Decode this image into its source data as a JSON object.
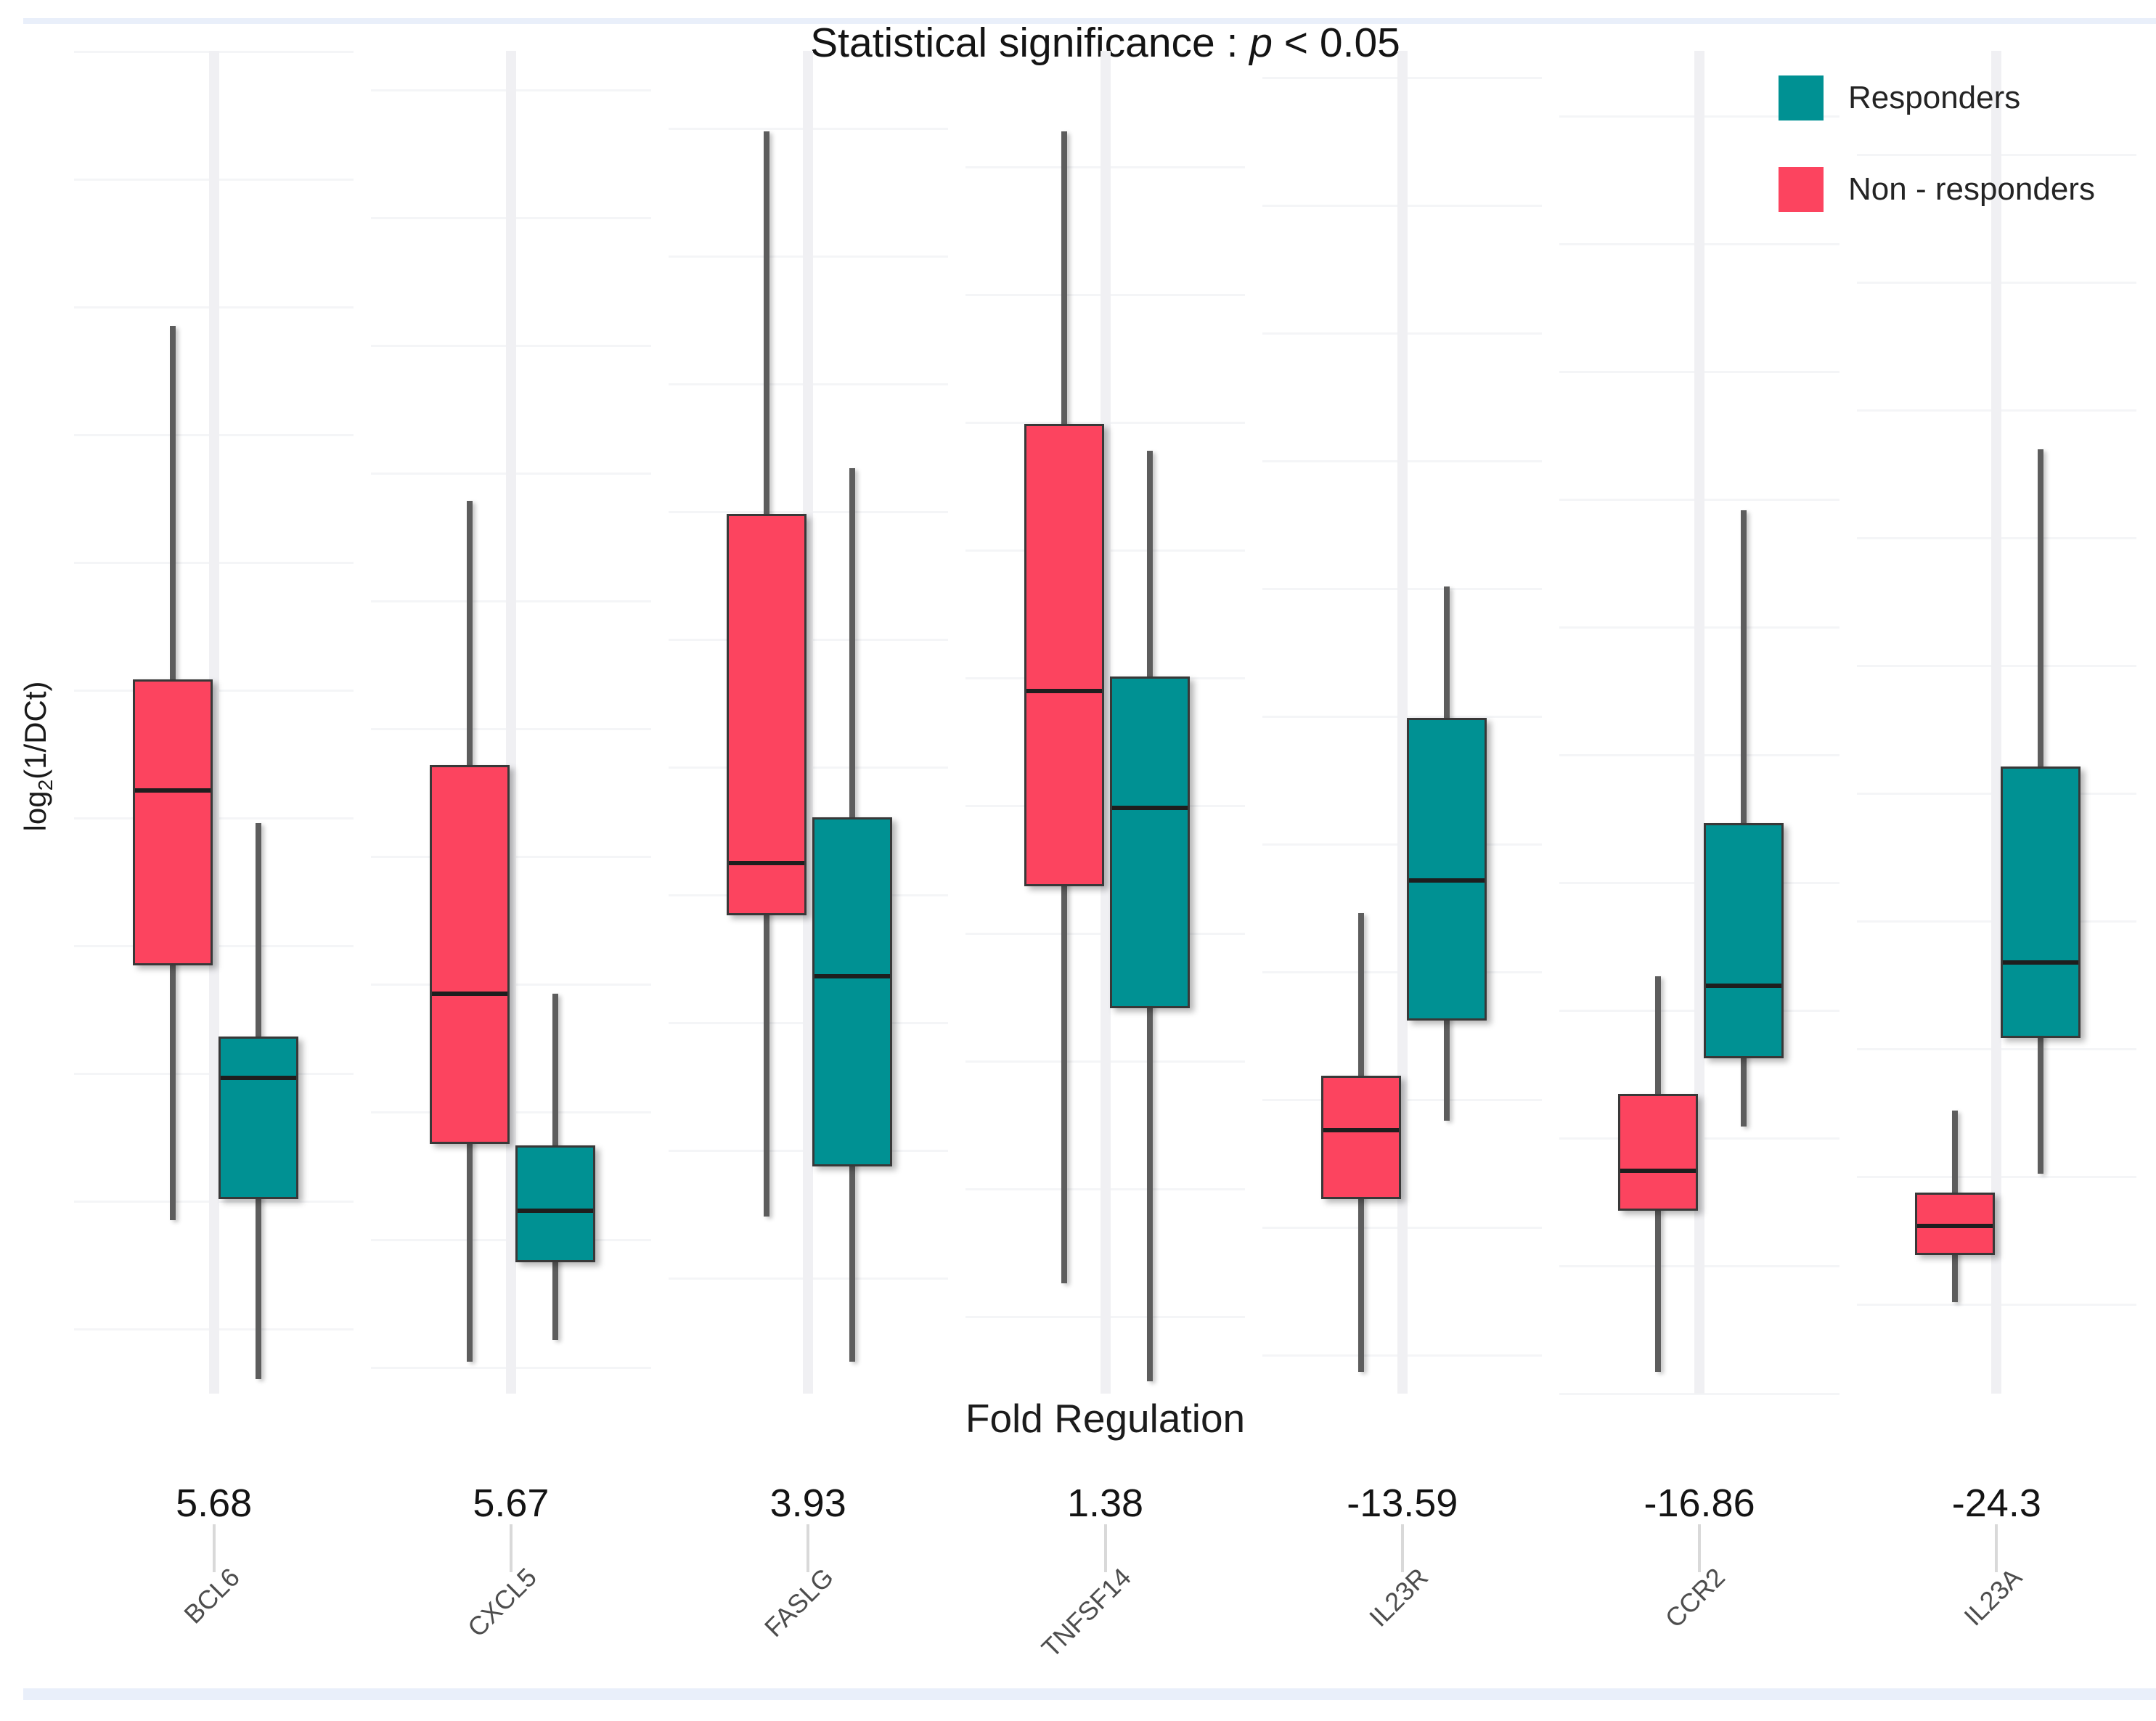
{
  "page": {
    "background": "#ffffff",
    "top_bar_color": "#E9EFFA",
    "bottom_bar_color": "#E9EFFA"
  },
  "chart_data": {
    "type": "boxplot",
    "title_parts": {
      "prefix": "Statistical significance : ",
      "p": "p",
      "suffix": " < 0.05"
    },
    "xlabel": "Fold Regulation",
    "ylabel_parts": {
      "pre": "log",
      "sub": "2",
      "post": "(1/DCt)"
    },
    "legend_position": "top-right",
    "legend": [
      {
        "label": "Responders",
        "color": "#009193"
      },
      {
        "label": "Non - responders",
        "color": "#FC445F"
      }
    ],
    "grid": "faint per-panel gridlines, free y-scales, no numeric y ticks",
    "y_units_note": "box statistics are estimated fractions of panel height (0 = panel bottom, 1 = panel top); no numeric y tick labels are visible",
    "series_order_in_panel": [
      "non_responders(left, pink)",
      "responders(right, teal)"
    ],
    "genes": [
      {
        "name": "BCL6",
        "fold_regulation": "5.68",
        "non_responders": {
          "whisker_low": 0.129,
          "q1": 0.319,
          "median": 0.449,
          "q3": 0.532,
          "whisker_high": 0.795
        },
        "responders": {
          "whisker_low": 0.011,
          "q1": 0.145,
          "median": 0.235,
          "q3": 0.266,
          "whisker_high": 0.425
        }
      },
      {
        "name": "CXCL5",
        "fold_regulation": "5.67",
        "non_responders": {
          "whisker_low": 0.024,
          "q1": 0.186,
          "median": 0.298,
          "q3": 0.468,
          "whisker_high": 0.665
        },
        "responders": {
          "whisker_low": 0.04,
          "q1": 0.098,
          "median": 0.136,
          "q3": 0.185,
          "whisker_high": 0.298
        }
      },
      {
        "name": "FASLG",
        "fold_regulation": "3.93",
        "non_responders": {
          "whisker_low": 0.132,
          "q1": 0.356,
          "median": 0.395,
          "q3": 0.655,
          "whisker_high": 0.94
        },
        "responders": {
          "whisker_low": 0.024,
          "q1": 0.169,
          "median": 0.311,
          "q3": 0.429,
          "whisker_high": 0.689
        }
      },
      {
        "name": "TNFSF14",
        "fold_regulation": "1.38",
        "non_responders": {
          "whisker_low": 0.082,
          "q1": 0.378,
          "median": 0.523,
          "q3": 0.722,
          "whisker_high": 0.94
        },
        "responders": {
          "whisker_low": 0.009,
          "q1": 0.287,
          "median": 0.436,
          "q3": 0.534,
          "whisker_high": 0.702
        }
      },
      {
        "name": "IL23R",
        "fold_regulation": "-13.59",
        "non_responders": {
          "whisker_low": 0.016,
          "q1": 0.145,
          "median": 0.196,
          "q3": 0.237,
          "whisker_high": 0.358
        },
        "responders": {
          "whisker_low": 0.203,
          "q1": 0.278,
          "median": 0.382,
          "q3": 0.503,
          "whisker_high": 0.601
        }
      },
      {
        "name": "CCR2",
        "fold_regulation": "-16.86",
        "non_responders": {
          "whisker_low": 0.016,
          "q1": 0.136,
          "median": 0.166,
          "q3": 0.223,
          "whisker_high": 0.311
        },
        "responders": {
          "whisker_low": 0.199,
          "q1": 0.25,
          "median": 0.304,
          "q3": 0.425,
          "whisker_high": 0.658
        }
      },
      {
        "name": "IL23A",
        "fold_regulation": "-24.3",
        "non_responders": {
          "whisker_low": 0.068,
          "q1": 0.103,
          "median": 0.125,
          "q3": 0.15,
          "whisker_high": 0.211
        },
        "responders": {
          "whisker_low": 0.164,
          "q1": 0.265,
          "median": 0.321,
          "q3": 0.467,
          "whisker_high": 0.703
        }
      }
    ],
    "colors": {
      "responders_fill": "#009193",
      "non_responders_fill": "#FC445F",
      "box_border": "#383838",
      "median_line": "#1e1e1e",
      "whisker": "#5d5d5d"
    }
  }
}
